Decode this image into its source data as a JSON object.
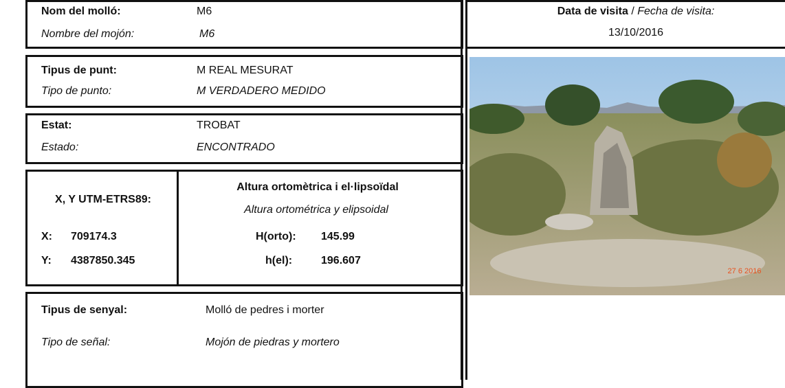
{
  "name": {
    "label_ca": "Nom del molló:",
    "value_ca": "M6",
    "label_es": "Nombre del mojón:",
    "value_es": "M6"
  },
  "visit": {
    "label_ca": "Data de visita",
    "separator": "/",
    "label_es": "Fecha de visita:",
    "date": "13/10/2016"
  },
  "point_type": {
    "label_ca": "Tipus de punt:",
    "value_ca": "M REAL MESURAT",
    "label_es": "Tipo de punto:",
    "value_es": "M VERDADERO MEDIDO"
  },
  "status": {
    "label_ca": "Estat:",
    "value_ca": "TROBAT",
    "label_es": "Estado:",
    "value_es": "ENCONTRADO"
  },
  "coordinates": {
    "title": "X, Y UTM-ETRS89:",
    "x_label": "X:",
    "x": "709174.3",
    "y_label": "Y:",
    "y": "4387850.345"
  },
  "heights": {
    "title_ca": "Altura ortomètrica i el·lipsoïdal",
    "title_es": "Altura ortométrica y elipsoidal",
    "orto_label": "H(orto):",
    "orto": "145.99",
    "el_label": "h(el):",
    "el": "196.607"
  },
  "signal": {
    "label_ca": "Tipus de senyal:",
    "value_ca": "Molló de pedres i morter",
    "label_es": "Tipo de señal:",
    "value_es": "Mojón de piedras y mortero"
  },
  "photo": {
    "stamp": "27 6 2016"
  }
}
